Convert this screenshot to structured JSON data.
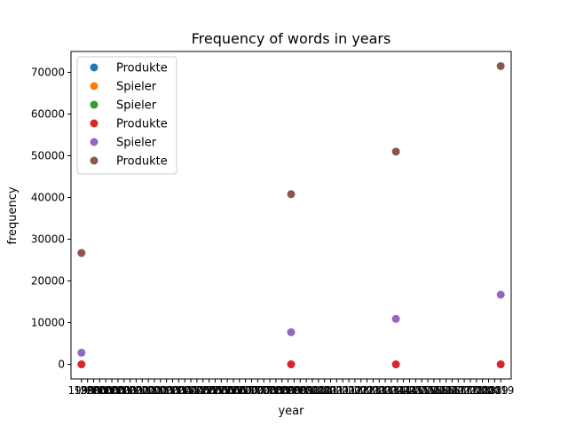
{
  "chart_data": {
    "type": "scatter",
    "title": "Frequency of words in years",
    "xlabel": "year",
    "ylabel": "frequency",
    "ylim": [
      -3500,
      75000
    ],
    "yticks": [
      0,
      10000,
      20000,
      30000,
      40000,
      50000,
      60000,
      70000
    ],
    "xlim_years": [
      1998.5,
      2019.5
    ],
    "xticks_visible": [
      "1999",
      "2009",
      "2014",
      "2019"
    ],
    "x_tick_note": "many overlapping categorical year tick labels between 1999 and 2019",
    "grid": false,
    "legend_position": "upper-left",
    "series": [
      {
        "name": "Produkte",
        "color": "#1f77b4",
        "points": []
      },
      {
        "name": "Spieler",
        "color": "#ff7f0e",
        "points": []
      },
      {
        "name": "Spieler",
        "color": "#2ca02c",
        "points": []
      },
      {
        "name": "Produkte",
        "color": "#d62728",
        "points": [
          [
            1999,
            0
          ],
          [
            2009,
            0
          ],
          [
            2014,
            0
          ],
          [
            2019,
            0
          ]
        ]
      },
      {
        "name": "Spieler",
        "color": "#9467bd",
        "points": [
          [
            1999,
            2800
          ],
          [
            2009,
            7700
          ],
          [
            2014,
            10900
          ],
          [
            2019,
            16700
          ]
        ]
      },
      {
        "name": "Produkte",
        "color": "#8c564b",
        "points": [
          [
            1999,
            26700
          ],
          [
            2009,
            40800
          ],
          [
            2014,
            51000
          ],
          [
            2019,
            71500
          ]
        ]
      }
    ]
  }
}
